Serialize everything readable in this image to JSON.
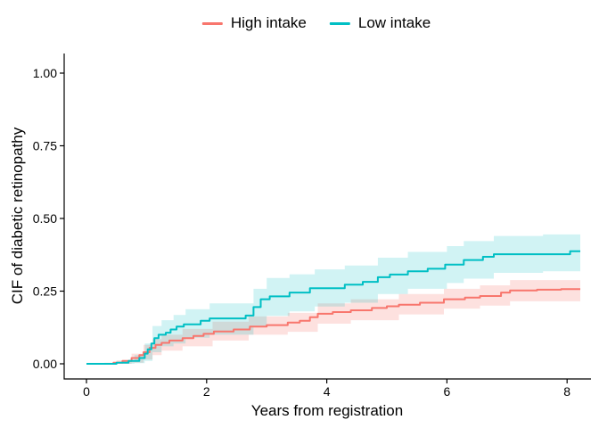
{
  "legend": {
    "items": [
      {
        "label": "High intake",
        "color": "#F8766D"
      },
      {
        "label": "Low intake",
        "color": "#00BFC4"
      }
    ]
  },
  "chart_data": {
    "type": "line",
    "subtype": "step-cumulative-incidence",
    "title": "",
    "xlabel": "Years from registration",
    "ylabel": "CIF of diabetic retinopathy",
    "xlim": [
      0,
      8.25
    ],
    "ylim": [
      0,
      1.0
    ],
    "x_ticks": [
      0,
      2,
      4,
      6,
      8
    ],
    "x_tick_labels": [
      "0",
      "2",
      "4",
      "6",
      "8"
    ],
    "y_ticks": [
      0,
      0.25,
      0.5,
      0.75,
      1.0
    ],
    "y_tick_labels": [
      "0.00",
      "0.25",
      "0.50",
      "0.75",
      "1.00"
    ],
    "grid": false,
    "legend_position": "top",
    "x_end": 8.22,
    "series": [
      {
        "name": "High intake",
        "color": "#F8766D",
        "band_color": "rgba(248,118,109,0.22)",
        "x": [
          0,
          0.45,
          0.6,
          0.75,
          0.88,
          0.95,
          1.05,
          1.15,
          1.25,
          1.38,
          1.6,
          1.78,
          1.95,
          2.12,
          2.45,
          2.72,
          3.0,
          3.35,
          3.55,
          3.72,
          3.85,
          4.1,
          4.4,
          4.75,
          5.0,
          5.2,
          5.55,
          5.95,
          6.3,
          6.55,
          6.9,
          7.05,
          7.5,
          7.9
        ],
        "y": [
          0,
          0.004,
          0.01,
          0.02,
          0.03,
          0.04,
          0.055,
          0.065,
          0.072,
          0.08,
          0.088,
          0.096,
          0.103,
          0.111,
          0.118,
          0.128,
          0.133,
          0.142,
          0.148,
          0.16,
          0.172,
          0.178,
          0.184,
          0.192,
          0.198,
          0.203,
          0.21,
          0.222,
          0.228,
          0.233,
          0.245,
          0.252,
          0.255,
          0.257
        ],
        "band": {
          "x": [
            0.3,
            0.5,
            0.75,
            0.95,
            1.1,
            1.25,
            1.6,
            2.1,
            2.7,
            3.35,
            3.85,
            4.4,
            5.2,
            5.95,
            6.55,
            7.05
          ],
          "lower": [
            0,
            0,
            0.004,
            0.015,
            0.03,
            0.045,
            0.06,
            0.08,
            0.1,
            0.11,
            0.138,
            0.15,
            0.17,
            0.19,
            0.2,
            0.215
          ],
          "upper": [
            0.004,
            0.012,
            0.035,
            0.065,
            0.085,
            0.1,
            0.12,
            0.145,
            0.163,
            0.175,
            0.208,
            0.222,
            0.24,
            0.258,
            0.27,
            0.288
          ]
        }
      },
      {
        "name": "Low intake",
        "color": "#00BFC4",
        "band_color": "rgba(0,191,196,0.18)",
        "x": [
          0,
          0.5,
          0.7,
          0.88,
          0.97,
          1.02,
          1.08,
          1.13,
          1.2,
          1.32,
          1.4,
          1.5,
          1.62,
          1.9,
          2.05,
          2.65,
          2.78,
          2.9,
          3.05,
          3.38,
          3.72,
          4.3,
          4.6,
          4.85,
          5.05,
          5.35,
          5.68,
          5.97,
          6.28,
          6.6,
          6.78,
          8.05
        ],
        "y": [
          0,
          0.004,
          0.01,
          0.02,
          0.035,
          0.05,
          0.07,
          0.088,
          0.1,
          0.107,
          0.118,
          0.128,
          0.136,
          0.148,
          0.156,
          0.166,
          0.195,
          0.222,
          0.232,
          0.245,
          0.26,
          0.272,
          0.282,
          0.298,
          0.307,
          0.318,
          0.327,
          0.341,
          0.357,
          0.368,
          0.377,
          0.387
        ],
        "band": {
          "x": [
            0.6,
            0.8,
            0.97,
            1.1,
            1.25,
            1.45,
            1.65,
            2.05,
            2.78,
            3.0,
            3.38,
            3.8,
            4.3,
            4.85,
            5.35,
            6.0,
            6.28,
            6.78,
            7.6
          ],
          "lower": [
            0,
            0.002,
            0.01,
            0.04,
            0.06,
            0.07,
            0.09,
            0.1,
            0.13,
            0.165,
            0.18,
            0.197,
            0.21,
            0.24,
            0.258,
            0.278,
            0.293,
            0.313,
            0.318
          ],
          "upper": [
            0.01,
            0.03,
            0.07,
            0.13,
            0.15,
            0.168,
            0.188,
            0.208,
            0.258,
            0.295,
            0.308,
            0.325,
            0.338,
            0.365,
            0.385,
            0.405,
            0.422,
            0.44,
            0.445
          ]
        }
      }
    ]
  }
}
